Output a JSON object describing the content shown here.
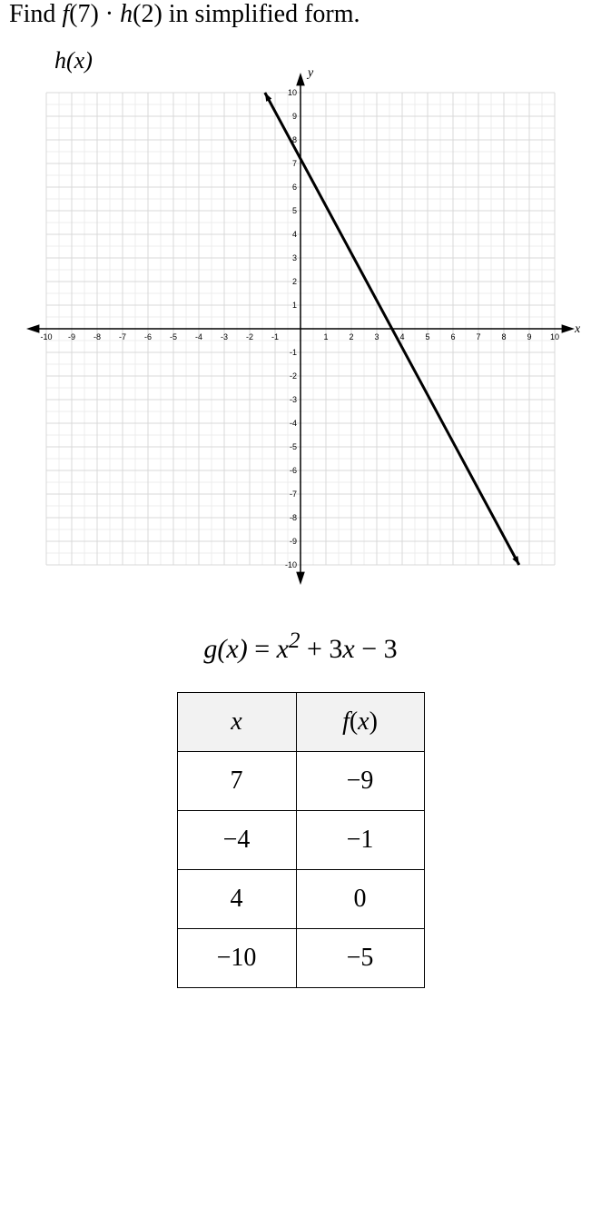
{
  "prompt_html": "Find <span class='ital'>f</span>(7) · <span class='ital'>h</span>(2) in simplified form.",
  "graph": {
    "title": "h(x)",
    "x_axis_label": "x",
    "y_axis_label": "y",
    "xlim": [
      -10,
      10
    ],
    "ylim": [
      -10,
      10
    ],
    "tick_step": 1,
    "grid_major_color": "#d9d9d9",
    "grid_minor_color": "#ececec",
    "axis_color": "#000000",
    "background_color": "#ffffff",
    "tick_font_size": 9,
    "line": {
      "type": "line",
      "points": [
        [
          -1.4,
          10
        ],
        [
          8.6,
          -10
        ]
      ],
      "color": "#000000",
      "width": 3,
      "arrowheads": true
    }
  },
  "gx": {
    "text_html": "<span class='ital'>g</span>(<span class='ital'>x</span>) <span class='gxn'>=</span> <span class='ital'>x</span><sup>2</sup> <span class='gxn'>+ 3</span><span class='ital'>x</span> <span class='gxn'>− 3</span>"
  },
  "table": {
    "columns_html": [
      "<span class='ital'>x</span>",
      "<span class='ital'>f</span>(<span class='ital'>x</span>)"
    ],
    "rows": [
      [
        "7",
        "−9"
      ],
      [
        "−4",
        "−1"
      ],
      [
        "4",
        "0"
      ],
      [
        "−10",
        "−5"
      ]
    ],
    "cell_font_size": 28
  }
}
